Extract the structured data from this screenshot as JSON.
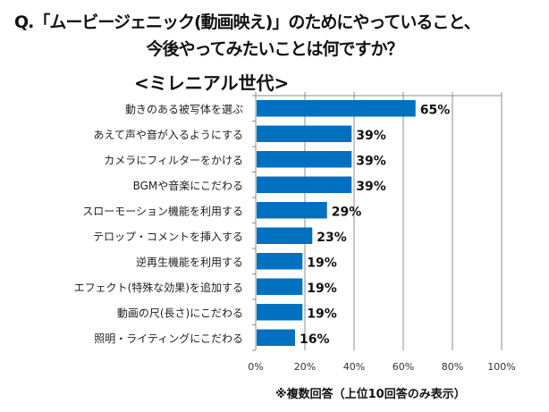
{
  "title_line1": "Q.「ムービージェニック(動画映え)」のためにやっていること、",
  "title_line2": "今後やってみたいことは何ですか？",
  "subtitle": "<ミレニアル世代>",
  "footnote": "※複数回答（上位10回答のみ表示）",
  "chart_data": {
    "type": "bar",
    "orientation": "horizontal",
    "categories": [
      "動きのある被写体を選ぶ",
      "あえて声や音が入るようにする",
      "カメラにフィルターをかける",
      "BGMや音楽にこだわる",
      "スローモーション機能を利用する",
      "テロップ・コメントを挿入する",
      "逆再生機能を利用する",
      "エフェクト(特殊な効果)を追加する",
      "動画の尺(長さ)にこだわる",
      "照明・ライティングにこだわる"
    ],
    "values": [
      65,
      39,
      39,
      39,
      29,
      23,
      19,
      19,
      19,
      16
    ],
    "data_labels": [
      "65%",
      "39%",
      "39%",
      "39%",
      "29%",
      "23%",
      "19%",
      "19%",
      "19%",
      "16%"
    ],
    "xlim": [
      0,
      100
    ],
    "xticks": [
      "0%",
      "20%",
      "40%",
      "60%",
      "80%",
      "100%"
    ],
    "grid": true,
    "bar_color": "#0070C0"
  }
}
